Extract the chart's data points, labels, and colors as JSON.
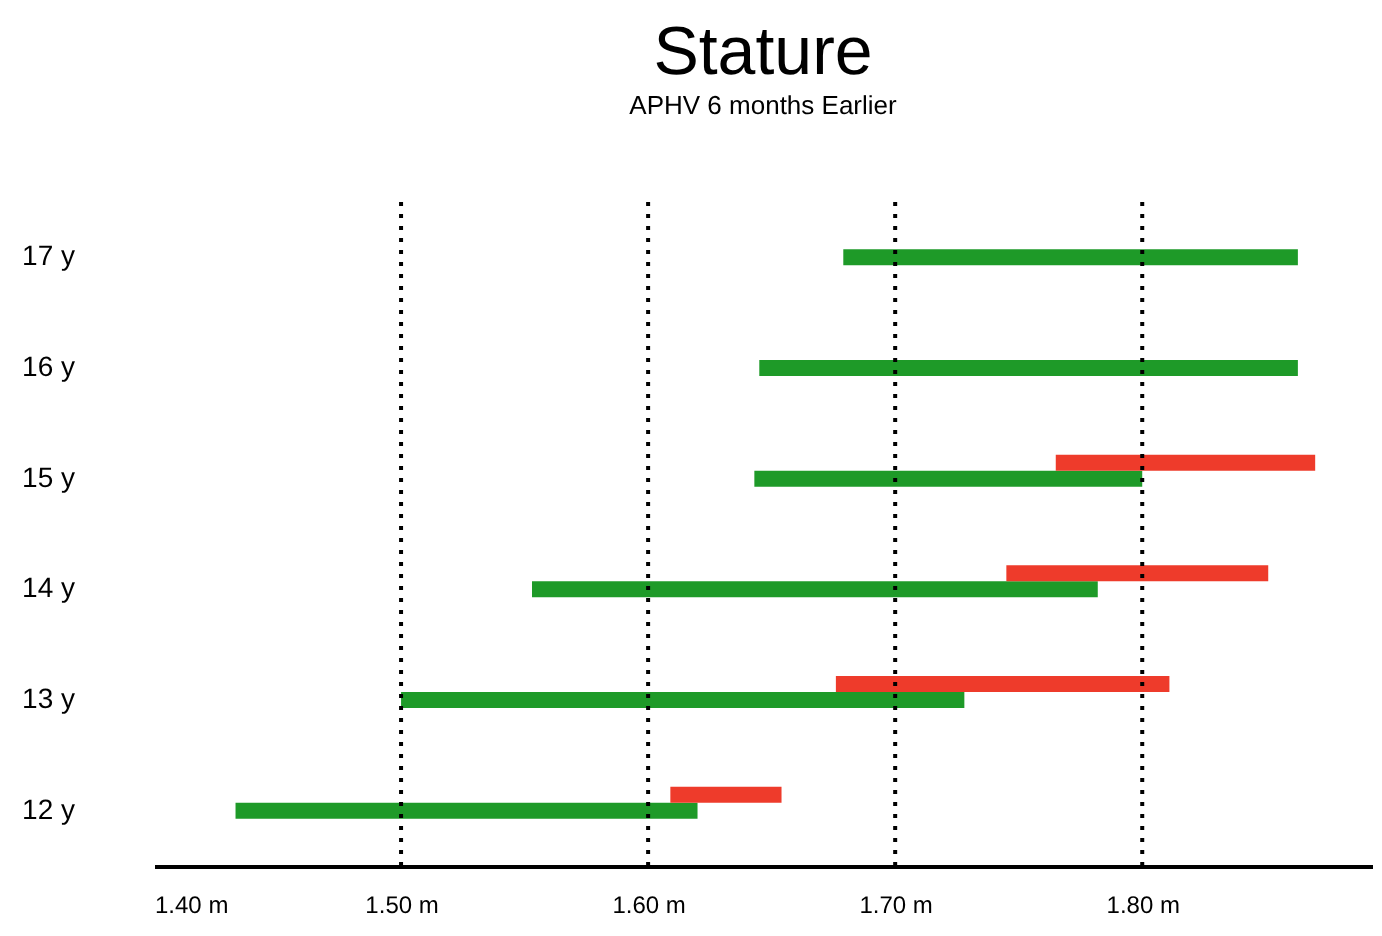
{
  "chart_data": {
    "type": "bar",
    "title": "Stature",
    "subtitle": "APHV 6 months Earlier",
    "orientation": "horizontal",
    "categories": [
      "17 y",
      "16 y",
      "15 y",
      "14 y",
      "13 y",
      "12 y"
    ],
    "series": [
      {
        "color": "#1e9a28",
        "base": [
          1.679,
          1.645,
          1.643,
          1.553,
          1.5,
          1.433
        ],
        "values": [
          0.184,
          0.218,
          0.157,
          0.229,
          0.228,
          0.187
        ]
      },
      {
        "color": "#ee3b2b",
        "base": [
          null,
          null,
          1.765,
          1.745,
          1.676,
          1.609
        ],
        "values": [
          null,
          null,
          0.105,
          0.106,
          0.135,
          0.045
        ]
      }
    ],
    "xlim": [
      1.4,
      1.893
    ],
    "xticks": [
      {
        "value": 1.4,
        "label": "1.40 m"
      },
      {
        "value": 1.5,
        "label": "1.50 m"
      },
      {
        "value": 1.6,
        "label": "1.60 m"
      },
      {
        "value": 1.7,
        "label": "1.70 m"
      },
      {
        "value": 1.8,
        "label": "1.80 m"
      }
    ],
    "ref_lines": [
      {
        "axis": "x",
        "value": 1.5,
        "color": "#000000",
        "line_style": "dotted"
      },
      {
        "axis": "x",
        "value": 1.6,
        "color": "#000000",
        "line_style": "dotted"
      },
      {
        "axis": "x",
        "value": 1.7,
        "color": "#000000",
        "line_style": "dotted"
      },
      {
        "axis": "x",
        "value": 1.8,
        "color": "#000000",
        "line_style": "dotted"
      }
    ],
    "grid": false,
    "legend": false
  }
}
